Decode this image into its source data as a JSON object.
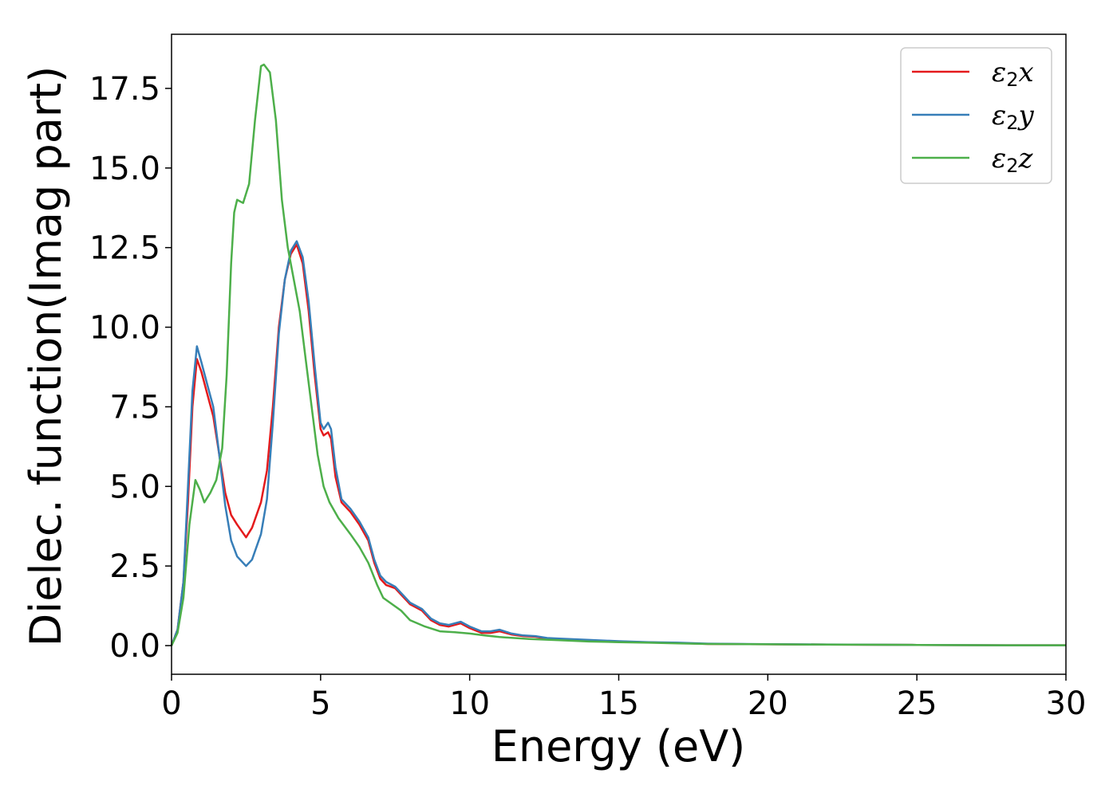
{
  "chart_data": {
    "type": "line",
    "title": "",
    "xlabel": "Energy (eV)",
    "ylabel": "Dielec. function(Imag part)",
    "xlim": [
      0,
      30
    ],
    "ylim": [
      -0.9,
      19.2
    ],
    "xticks": [
      0,
      5,
      10,
      15,
      20,
      25,
      30
    ],
    "xtick_labels": [
      "0",
      "5",
      "10",
      "15",
      "20",
      "25",
      "30"
    ],
    "yticks": [
      0,
      2.5,
      5,
      7.5,
      10,
      12.5,
      15,
      17.5
    ],
    "ytick_labels": [
      "0.0",
      "2.5",
      "5.0",
      "7.5",
      "10.0",
      "12.5",
      "15.0",
      "17.5"
    ],
    "grid": false,
    "legend_position": "top-right",
    "series": [
      {
        "name_base": "ε",
        "name_sub": "2",
        "name_tail": "x",
        "color": "#e41a1c",
        "points": [
          [
            0,
            0
          ],
          [
            0.2,
            0.5
          ],
          [
            0.4,
            2.0
          ],
          [
            0.55,
            4.5
          ],
          [
            0.7,
            7.5
          ],
          [
            0.85,
            9.0
          ],
          [
            1.0,
            8.6
          ],
          [
            1.2,
            7.9
          ],
          [
            1.4,
            7.2
          ],
          [
            1.6,
            6.0
          ],
          [
            1.8,
            4.8
          ],
          [
            2.0,
            4.1
          ],
          [
            2.2,
            3.8
          ],
          [
            2.5,
            3.4
          ],
          [
            2.7,
            3.7
          ],
          [
            3.0,
            4.5
          ],
          [
            3.2,
            5.5
          ],
          [
            3.4,
            7.5
          ],
          [
            3.6,
            10.0
          ],
          [
            3.8,
            11.5
          ],
          [
            4.0,
            12.3
          ],
          [
            4.2,
            12.6
          ],
          [
            4.4,
            12.0
          ],
          [
            4.6,
            10.5
          ],
          [
            4.8,
            8.5
          ],
          [
            5.0,
            6.8
          ],
          [
            5.1,
            6.6
          ],
          [
            5.25,
            6.7
          ],
          [
            5.35,
            6.5
          ],
          [
            5.5,
            5.3
          ],
          [
            5.7,
            4.5
          ],
          [
            6.0,
            4.2
          ],
          [
            6.3,
            3.8
          ],
          [
            6.6,
            3.3
          ],
          [
            6.8,
            2.6
          ],
          [
            7.0,
            2.1
          ],
          [
            7.2,
            1.9
          ],
          [
            7.5,
            1.8
          ],
          [
            7.8,
            1.5
          ],
          [
            8.0,
            1.3
          ],
          [
            8.4,
            1.1
          ],
          [
            8.7,
            0.8
          ],
          [
            9.0,
            0.65
          ],
          [
            9.3,
            0.6
          ],
          [
            9.7,
            0.7
          ],
          [
            10.0,
            0.55
          ],
          [
            10.4,
            0.4
          ],
          [
            10.7,
            0.4
          ],
          [
            11.0,
            0.45
          ],
          [
            11.4,
            0.35
          ],
          [
            11.8,
            0.3
          ],
          [
            12.2,
            0.28
          ],
          [
            12.6,
            0.22
          ],
          [
            13.0,
            0.2
          ],
          [
            14.0,
            0.16
          ],
          [
            15.0,
            0.13
          ],
          [
            16.0,
            0.1
          ],
          [
            17.0,
            0.08
          ],
          [
            18.0,
            0.05
          ],
          [
            20.0,
            0.04
          ],
          [
            22.0,
            0.03
          ],
          [
            25.0,
            0.02
          ],
          [
            28.0,
            0.01
          ],
          [
            30.0,
            0.01
          ]
        ]
      },
      {
        "name_base": "ε",
        "name_sub": "2",
        "name_tail": "y",
        "color": "#377eb8",
        "points": [
          [
            0,
            0
          ],
          [
            0.2,
            0.5
          ],
          [
            0.4,
            2.0
          ],
          [
            0.55,
            5.0
          ],
          [
            0.7,
            8.0
          ],
          [
            0.85,
            9.4
          ],
          [
            1.0,
            8.9
          ],
          [
            1.2,
            8.2
          ],
          [
            1.4,
            7.5
          ],
          [
            1.6,
            6.0
          ],
          [
            1.8,
            4.4
          ],
          [
            2.0,
            3.3
          ],
          [
            2.2,
            2.8
          ],
          [
            2.5,
            2.5
          ],
          [
            2.7,
            2.7
          ],
          [
            3.0,
            3.5
          ],
          [
            3.2,
            4.6
          ],
          [
            3.4,
            7.0
          ],
          [
            3.6,
            9.8
          ],
          [
            3.8,
            11.5
          ],
          [
            4.0,
            12.4
          ],
          [
            4.2,
            12.7
          ],
          [
            4.4,
            12.2
          ],
          [
            4.6,
            10.8
          ],
          [
            4.8,
            8.8
          ],
          [
            5.0,
            7.0
          ],
          [
            5.1,
            6.8
          ],
          [
            5.25,
            7.0
          ],
          [
            5.35,
            6.8
          ],
          [
            5.5,
            5.6
          ],
          [
            5.7,
            4.6
          ],
          [
            6.0,
            4.3
          ],
          [
            6.3,
            3.9
          ],
          [
            6.6,
            3.4
          ],
          [
            6.8,
            2.7
          ],
          [
            7.0,
            2.2
          ],
          [
            7.2,
            2.0
          ],
          [
            7.5,
            1.85
          ],
          [
            7.8,
            1.55
          ],
          [
            8.0,
            1.35
          ],
          [
            8.4,
            1.15
          ],
          [
            8.7,
            0.85
          ],
          [
            9.0,
            0.7
          ],
          [
            9.3,
            0.65
          ],
          [
            9.7,
            0.75
          ],
          [
            10.0,
            0.6
          ],
          [
            10.4,
            0.45
          ],
          [
            10.7,
            0.45
          ],
          [
            11.0,
            0.5
          ],
          [
            11.4,
            0.38
          ],
          [
            11.8,
            0.32
          ],
          [
            12.2,
            0.3
          ],
          [
            12.6,
            0.24
          ],
          [
            13.0,
            0.22
          ],
          [
            14.0,
            0.18
          ],
          [
            15.0,
            0.14
          ],
          [
            16.0,
            0.11
          ],
          [
            17.0,
            0.09
          ],
          [
            18.0,
            0.06
          ],
          [
            20.0,
            0.045
          ],
          [
            22.0,
            0.035
          ],
          [
            25.0,
            0.02
          ],
          [
            28.0,
            0.01
          ],
          [
            30.0,
            0.01
          ]
        ]
      },
      {
        "name_base": "ε",
        "name_sub": "2",
        "name_tail": "z",
        "color": "#4daf4a",
        "points": [
          [
            0,
            0
          ],
          [
            0.2,
            0.4
          ],
          [
            0.4,
            1.5
          ],
          [
            0.6,
            3.8
          ],
          [
            0.8,
            5.2
          ],
          [
            0.95,
            4.9
          ],
          [
            1.1,
            4.5
          ],
          [
            1.3,
            4.8
          ],
          [
            1.5,
            5.2
          ],
          [
            1.7,
            6.2
          ],
          [
            1.85,
            8.5
          ],
          [
            2.0,
            12.0
          ],
          [
            2.1,
            13.6
          ],
          [
            2.2,
            14.0
          ],
          [
            2.4,
            13.9
          ],
          [
            2.6,
            14.5
          ],
          [
            2.8,
            16.5
          ],
          [
            3.0,
            18.2
          ],
          [
            3.1,
            18.25
          ],
          [
            3.3,
            18.0
          ],
          [
            3.5,
            16.5
          ],
          [
            3.7,
            14.0
          ],
          [
            3.9,
            12.5
          ],
          [
            4.1,
            11.5
          ],
          [
            4.3,
            10.5
          ],
          [
            4.5,
            9.0
          ],
          [
            4.7,
            7.5
          ],
          [
            4.9,
            6.0
          ],
          [
            5.1,
            5.0
          ],
          [
            5.3,
            4.5
          ],
          [
            5.6,
            4.0
          ],
          [
            6.0,
            3.5
          ],
          [
            6.3,
            3.1
          ],
          [
            6.6,
            2.6
          ],
          [
            6.9,
            1.9
          ],
          [
            7.1,
            1.5
          ],
          [
            7.4,
            1.3
          ],
          [
            7.7,
            1.1
          ],
          [
            8.0,
            0.8
          ],
          [
            8.5,
            0.6
          ],
          [
            9.0,
            0.45
          ],
          [
            9.5,
            0.42
          ],
          [
            10.0,
            0.38
          ],
          [
            10.5,
            0.32
          ],
          [
            11.0,
            0.27
          ],
          [
            11.5,
            0.24
          ],
          [
            12.0,
            0.21
          ],
          [
            13.0,
            0.17
          ],
          [
            14.0,
            0.13
          ],
          [
            15.0,
            0.11
          ],
          [
            16.0,
            0.09
          ],
          [
            17.0,
            0.07
          ],
          [
            18.0,
            0.05
          ],
          [
            20.0,
            0.04
          ],
          [
            22.0,
            0.03
          ],
          [
            25.0,
            0.02
          ],
          [
            28.0,
            0.01
          ],
          [
            30.0,
            0.01
          ]
        ]
      }
    ]
  }
}
